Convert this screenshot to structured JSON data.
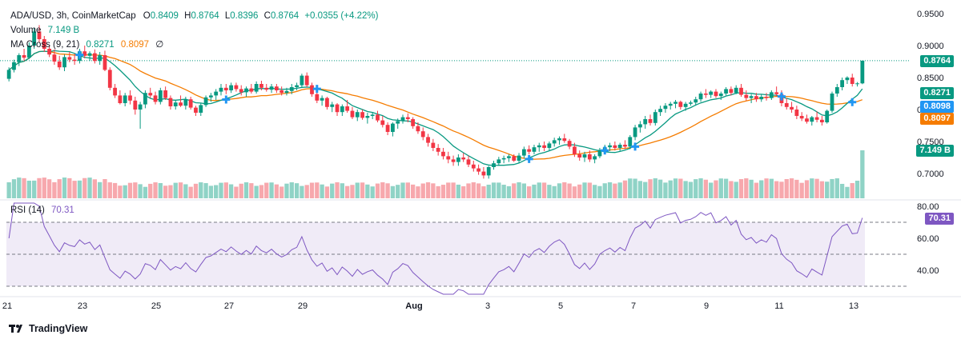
{
  "header": {
    "symbol": "ADA/USD, 3h, CoinMarketCap",
    "o_label": "O",
    "o_value": "0.8409",
    "h_label": "H",
    "h_value": "0.8764",
    "l_label": "L",
    "l_value": "0.8396",
    "c_label": "C",
    "c_value": "0.8764",
    "change": "+0.0355 (+4.22%)",
    "volume_label": "Volume",
    "volume_value": "7.149 B",
    "ma_label": "MA Cross (9, 21)",
    "ma_fast_value": "0.8271",
    "ma_slow_value": "0.8097",
    "ma_extra": "∅"
  },
  "rsi_header": {
    "label": "RSI (14)",
    "value": "70.31"
  },
  "brand": {
    "name": "TradingView"
  },
  "colors": {
    "up": "#089981",
    "down": "#f23645",
    "ma_fast": "#089981",
    "ma_slow": "#f57c00",
    "rsi": "#7e57c2",
    "cross": "#2196f3"
  },
  "price_axis": [
    "0.9500",
    "0.9000",
    "0.8500",
    "0.8000",
    "0.7500",
    "0.7000"
  ],
  "rsi_axis": [
    "80.00",
    "60.00",
    "40.00"
  ],
  "time_axis": [
    "21",
    "23",
    "25",
    "27",
    "29",
    "Aug",
    "3",
    "5",
    "7",
    "9",
    "11",
    "13"
  ],
  "price_labels": {
    "last": "0.8764",
    "ma_fast": "0.8271",
    "ma_slow_blue": "0.8098",
    "ma_slow": "0.8097",
    "volume": "7.149 B",
    "rsi": "70.31"
  },
  "chart_data": [
    {
      "type": "candlestick",
      "title": "ADA/USD, 3h, CoinMarketCap",
      "ylim": [
        0.67,
        0.96
      ],
      "x_ticks": [
        "21",
        "23",
        "25",
        "27",
        "29",
        "Aug",
        "3",
        "5",
        "7",
        "9",
        "11",
        "13"
      ],
      "candles": [
        [
          0.848,
          0.866,
          0.844,
          0.862
        ],
        [
          0.862,
          0.878,
          0.858,
          0.874
        ],
        [
          0.874,
          0.888,
          0.868,
          0.885
        ],
        [
          0.885,
          0.895,
          0.876,
          0.881
        ],
        [
          0.881,
          0.905,
          0.879,
          0.9
        ],
        [
          0.9,
          0.928,
          0.895,
          0.922
        ],
        [
          0.922,
          0.932,
          0.905,
          0.91
        ],
        [
          0.91,
          0.915,
          0.89,
          0.895
        ],
        [
          0.895,
          0.9,
          0.882,
          0.886
        ],
        [
          0.886,
          0.894,
          0.87,
          0.875
        ],
        [
          0.875,
          0.884,
          0.862,
          0.866
        ],
        [
          0.866,
          0.886,
          0.86,
          0.882
        ],
        [
          0.882,
          0.89,
          0.874,
          0.878
        ],
        [
          0.878,
          0.887,
          0.87,
          0.876
        ],
        [
          0.876,
          0.895,
          0.872,
          0.891
        ],
        [
          0.891,
          0.9,
          0.88,
          0.884
        ],
        [
          0.884,
          0.891,
          0.876,
          0.888
        ],
        [
          0.888,
          0.894,
          0.872,
          0.876
        ],
        [
          0.876,
          0.89,
          0.87,
          0.885
        ],
        [
          0.885,
          0.892,
          0.86,
          0.862
        ],
        [
          0.862,
          0.866,
          0.83,
          0.834
        ],
        [
          0.834,
          0.84,
          0.818,
          0.822
        ],
        [
          0.822,
          0.83,
          0.808,
          0.81
        ],
        [
          0.81,
          0.826,
          0.805,
          0.822
        ],
        [
          0.822,
          0.83,
          0.808,
          0.814
        ],
        [
          0.814,
          0.82,
          0.792,
          0.8
        ],
        [
          0.8,
          0.812,
          0.77,
          0.808
        ],
        [
          0.808,
          0.83,
          0.802,
          0.826
        ],
        [
          0.826,
          0.834,
          0.818,
          0.822
        ],
        [
          0.822,
          0.828,
          0.808,
          0.812
        ],
        [
          0.812,
          0.834,
          0.808,
          0.83
        ],
        [
          0.83,
          0.836,
          0.815,
          0.818
        ],
        [
          0.818,
          0.822,
          0.8,
          0.805
        ],
        [
          0.805,
          0.815,
          0.8,
          0.811
        ],
        [
          0.811,
          0.822,
          0.804,
          0.806
        ],
        [
          0.806,
          0.82,
          0.8,
          0.816
        ],
        [
          0.816,
          0.82,
          0.8,
          0.803
        ],
        [
          0.803,
          0.806,
          0.79,
          0.795
        ],
        [
          0.795,
          0.81,
          0.79,
          0.807
        ],
        [
          0.807,
          0.822,
          0.804,
          0.819
        ],
        [
          0.819,
          0.826,
          0.812,
          0.822
        ],
        [
          0.822,
          0.832,
          0.815,
          0.828
        ],
        [
          0.828,
          0.84,
          0.822,
          0.834
        ],
        [
          0.834,
          0.84,
          0.824,
          0.83
        ],
        [
          0.83,
          0.842,
          0.826,
          0.838
        ],
        [
          0.838,
          0.842,
          0.828,
          0.832
        ],
        [
          0.832,
          0.838,
          0.822,
          0.827
        ],
        [
          0.827,
          0.836,
          0.82,
          0.833
        ],
        [
          0.833,
          0.84,
          0.825,
          0.828
        ],
        [
          0.828,
          0.844,
          0.825,
          0.84
        ],
        [
          0.84,
          0.845,
          0.83,
          0.834
        ],
        [
          0.834,
          0.84,
          0.828,
          0.831
        ],
        [
          0.831,
          0.84,
          0.826,
          0.836
        ],
        [
          0.836,
          0.84,
          0.826,
          0.83
        ],
        [
          0.83,
          0.836,
          0.822,
          0.826
        ],
        [
          0.826,
          0.834,
          0.822,
          0.829
        ],
        [
          0.829,
          0.84,
          0.824,
          0.835
        ],
        [
          0.835,
          0.842,
          0.83,
          0.838
        ],
        [
          0.838,
          0.856,
          0.834,
          0.853
        ],
        [
          0.853,
          0.858,
          0.835,
          0.838
        ],
        [
          0.838,
          0.842,
          0.82,
          0.824
        ],
        [
          0.824,
          0.828,
          0.81,
          0.814
        ],
        [
          0.814,
          0.822,
          0.806,
          0.818
        ],
        [
          0.818,
          0.82,
          0.8,
          0.804
        ],
        [
          0.804,
          0.812,
          0.796,
          0.808
        ],
        [
          0.808,
          0.81,
          0.79,
          0.796
        ],
        [
          0.796,
          0.808,
          0.79,
          0.805
        ],
        [
          0.805,
          0.815,
          0.795,
          0.798
        ],
        [
          0.798,
          0.804,
          0.785,
          0.788
        ],
        [
          0.788,
          0.8,
          0.782,
          0.796
        ],
        [
          0.796,
          0.8,
          0.784,
          0.787
        ],
        [
          0.787,
          0.795,
          0.778,
          0.79
        ],
        [
          0.79,
          0.796,
          0.785,
          0.792
        ],
        [
          0.792,
          0.798,
          0.78,
          0.783
        ],
        [
          0.783,
          0.79,
          0.772,
          0.776
        ],
        [
          0.776,
          0.78,
          0.76,
          0.765
        ],
        [
          0.765,
          0.78,
          0.758,
          0.778
        ],
        [
          0.778,
          0.786,
          0.77,
          0.782
        ],
        [
          0.782,
          0.792,
          0.778,
          0.788
        ],
        [
          0.788,
          0.794,
          0.78,
          0.785
        ],
        [
          0.785,
          0.788,
          0.77,
          0.774
        ],
        [
          0.774,
          0.78,
          0.762,
          0.766
        ],
        [
          0.766,
          0.772,
          0.752,
          0.757
        ],
        [
          0.757,
          0.762,
          0.742,
          0.748
        ],
        [
          0.748,
          0.754,
          0.735,
          0.74
        ],
        [
          0.74,
          0.746,
          0.728,
          0.734
        ],
        [
          0.734,
          0.74,
          0.722,
          0.727
        ],
        [
          0.727,
          0.734,
          0.716,
          0.722
        ],
        [
          0.722,
          0.728,
          0.712,
          0.718
        ],
        [
          0.718,
          0.73,
          0.712,
          0.725
        ],
        [
          0.725,
          0.732,
          0.718,
          0.722
        ],
        [
          0.722,
          0.728,
          0.71,
          0.714
        ],
        [
          0.714,
          0.72,
          0.703,
          0.708
        ],
        [
          0.708,
          0.714,
          0.698,
          0.703
        ],
        [
          0.703,
          0.71,
          0.692,
          0.697
        ],
        [
          0.697,
          0.712,
          0.692,
          0.71
        ],
        [
          0.71,
          0.72,
          0.706,
          0.716
        ],
        [
          0.716,
          0.726,
          0.712,
          0.722
        ],
        [
          0.722,
          0.728,
          0.716,
          0.724
        ],
        [
          0.724,
          0.73,
          0.718,
          0.727
        ],
        [
          0.727,
          0.73,
          0.718,
          0.72
        ],
        [
          0.72,
          0.732,
          0.716,
          0.728
        ],
        [
          0.728,
          0.742,
          0.724,
          0.738
        ],
        [
          0.738,
          0.744,
          0.73,
          0.734
        ],
        [
          0.734,
          0.745,
          0.73,
          0.741
        ],
        [
          0.741,
          0.748,
          0.734,
          0.744
        ],
        [
          0.744,
          0.75,
          0.735,
          0.74
        ],
        [
          0.74,
          0.75,
          0.736,
          0.747
        ],
        [
          0.747,
          0.756,
          0.742,
          0.752
        ],
        [
          0.752,
          0.758,
          0.745,
          0.755
        ],
        [
          0.755,
          0.762,
          0.748,
          0.751
        ],
        [
          0.751,
          0.754,
          0.738,
          0.742
        ],
        [
          0.742,
          0.748,
          0.726,
          0.73
        ],
        [
          0.73,
          0.736,
          0.72,
          0.725
        ],
        [
          0.725,
          0.734,
          0.718,
          0.73
        ],
        [
          0.73,
          0.736,
          0.718,
          0.722
        ],
        [
          0.722,
          0.73,
          0.716,
          0.727
        ],
        [
          0.727,
          0.74,
          0.724,
          0.737
        ],
        [
          0.737,
          0.745,
          0.73,
          0.741
        ],
        [
          0.741,
          0.748,
          0.735,
          0.744
        ],
        [
          0.744,
          0.75,
          0.736,
          0.74
        ],
        [
          0.74,
          0.748,
          0.735,
          0.745
        ],
        [
          0.745,
          0.752,
          0.738,
          0.742
        ],
        [
          0.742,
          0.76,
          0.738,
          0.757
        ],
        [
          0.757,
          0.776,
          0.752,
          0.772
        ],
        [
          0.772,
          0.782,
          0.764,
          0.777
        ],
        [
          0.777,
          0.79,
          0.77,
          0.785
        ],
        [
          0.785,
          0.792,
          0.775,
          0.779
        ],
        [
          0.779,
          0.8,
          0.775,
          0.796
        ],
        [
          0.796,
          0.806,
          0.79,
          0.801
        ],
        [
          0.801,
          0.81,
          0.795,
          0.806
        ],
        [
          0.806,
          0.812,
          0.8,
          0.809
        ],
        [
          0.809,
          0.815,
          0.802,
          0.812
        ],
        [
          0.812,
          0.814,
          0.8,
          0.804
        ],
        [
          0.804,
          0.812,
          0.798,
          0.809
        ],
        [
          0.809,
          0.814,
          0.806,
          0.811
        ],
        [
          0.811,
          0.82,
          0.806,
          0.816
        ],
        [
          0.816,
          0.828,
          0.812,
          0.825
        ],
        [
          0.825,
          0.832,
          0.818,
          0.823
        ],
        [
          0.823,
          0.83,
          0.818,
          0.828
        ],
        [
          0.828,
          0.832,
          0.818,
          0.821
        ],
        [
          0.821,
          0.828,
          0.815,
          0.825
        ],
        [
          0.825,
          0.835,
          0.822,
          0.832
        ],
        [
          0.832,
          0.836,
          0.822,
          0.826
        ],
        [
          0.826,
          0.838,
          0.824,
          0.834
        ],
        [
          0.834,
          0.84,
          0.82,
          0.823
        ],
        [
          0.823,
          0.83,
          0.814,
          0.818
        ],
        [
          0.818,
          0.824,
          0.81,
          0.821
        ],
        [
          0.821,
          0.826,
          0.812,
          0.816
        ],
        [
          0.816,
          0.824,
          0.812,
          0.82
        ],
        [
          0.82,
          0.826,
          0.814,
          0.818
        ],
        [
          0.818,
          0.83,
          0.815,
          0.827
        ],
        [
          0.827,
          0.836,
          0.82,
          0.824
        ],
        [
          0.824,
          0.83,
          0.805,
          0.81
        ],
        [
          0.81,
          0.818,
          0.8,
          0.804
        ],
        [
          0.804,
          0.812,
          0.795,
          0.8
        ],
        [
          0.8,
          0.806,
          0.785,
          0.79
        ],
        [
          0.79,
          0.796,
          0.782,
          0.786
        ],
        [
          0.786,
          0.792,
          0.778,
          0.781
        ],
        [
          0.781,
          0.79,
          0.775,
          0.788
        ],
        [
          0.788,
          0.797,
          0.78,
          0.784
        ],
        [
          0.784,
          0.79,
          0.775,
          0.78
        ],
        [
          0.78,
          0.8,
          0.778,
          0.798
        ],
        [
          0.798,
          0.828,
          0.795,
          0.825
        ],
        [
          0.825,
          0.84,
          0.82,
          0.835
        ],
        [
          0.835,
          0.85,
          0.83,
          0.846
        ],
        [
          0.846,
          0.852,
          0.84,
          0.85
        ],
        [
          0.85,
          0.856,
          0.836,
          0.84
        ],
        [
          0.84,
          0.843,
          0.836,
          0.8409
        ],
        [
          0.8409,
          0.8764,
          0.8396,
          0.8764
        ]
      ],
      "volume_last": 7.149,
      "ma_fast": {
        "name": "MA Cross (9, 21) fast",
        "last": 0.8271
      },
      "ma_slow": {
        "name": "MA Cross (9, 21) slow",
        "last": 0.8097
      }
    },
    {
      "type": "line",
      "title": "RSI (14)",
      "ylim": [
        25,
        82
      ],
      "levels": [
        70,
        50,
        30
      ],
      "last": 70.31
    }
  ]
}
